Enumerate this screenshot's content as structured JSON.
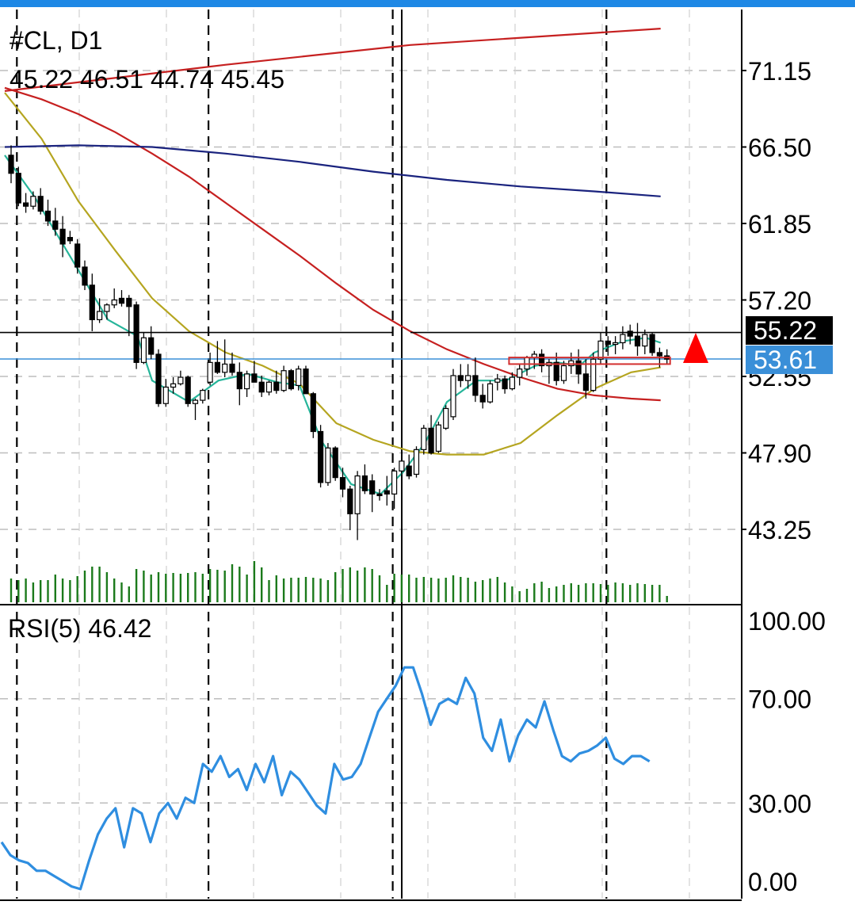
{
  "header": {
    "symbol_timeframe": "#CL, D1",
    "ohlc": "45.22 46.51 44.74 45.45"
  },
  "price_tags": {
    "last_price": "55.22",
    "blue_price": "53.61"
  },
  "rsi_header": "RSI(5) 46.42",
  "colors": {
    "bull_candle": "#ffffff",
    "bear_candle": "#000000",
    "volume": "#1b7a1b",
    "ma_teal": "#26b59a",
    "ma_olive": "#b5a520",
    "ma_red": "#c62020",
    "ma_navy": "#1a237e",
    "rsi_line": "#2f8ee0",
    "blue_price_line": "#3a8fd8",
    "signal_arrow": "#ff0000",
    "top_bar": "#1e88e5"
  },
  "icons": {
    "signal_arrow": "red-up-triangle-icon"
  },
  "chart_data": [
    {
      "type": "candlestick",
      "title": "#CL, D1",
      "y_axis_labels": [
        "71.15",
        "66.50",
        "61.85",
        "57.20",
        "52.55",
        "47.90",
        "43.25"
      ],
      "ylim": [
        40.8,
        73.5
      ],
      "horizontal_lines": [
        {
          "name": "last",
          "value": 55.22
        },
        {
          "name": "blue",
          "value": 53.61
        }
      ],
      "candles": [
        [
          66.0,
          66.6,
          64.3,
          64.9
        ],
        [
          64.9,
          65.3,
          62.9,
          63.1
        ],
        [
          63.1,
          63.7,
          62.5,
          62.9
        ],
        [
          62.9,
          63.8,
          62.7,
          63.5
        ],
        [
          63.5,
          64.0,
          62.4,
          62.6
        ],
        [
          62.6,
          63.3,
          61.7,
          62.0
        ],
        [
          62.0,
          62.8,
          61.1,
          61.5
        ],
        [
          61.5,
          62.3,
          59.8,
          60.6
        ],
        [
          61.0,
          61.4,
          60.6,
          60.8
        ],
        [
          60.6,
          60.9,
          58.8,
          59.2
        ],
        [
          59.2,
          59.6,
          57.8,
          58.1
        ],
        [
          58.1,
          58.8,
          55.3,
          56.0
        ],
        [
          56.0,
          57.3,
          55.8,
          56.5
        ],
        [
          56.5,
          57.0,
          56.0,
          56.9
        ],
        [
          56.9,
          57.9,
          56.7,
          57.2
        ],
        [
          57.3,
          57.8,
          56.8,
          57.0
        ],
        [
          57.3,
          57.5,
          55.0,
          56.8
        ],
        [
          56.9,
          57.1,
          53.0,
          53.4
        ],
        [
          53.4,
          55.2,
          53.3,
          54.9
        ],
        [
          54.9,
          55.6,
          53.6,
          53.9
        ],
        [
          53.9,
          54.2,
          50.7,
          50.9
        ],
        [
          50.9,
          52.4,
          50.7,
          51.9
        ],
        [
          51.9,
          52.5,
          51.5,
          52.1
        ],
        [
          52.1,
          52.9,
          52.0,
          52.5
        ],
        [
          52.5,
          52.6,
          50.7,
          50.9
        ],
        [
          50.9,
          51.2,
          49.9,
          51.1
        ],
        [
          51.1,
          51.8,
          50.9,
          51.7
        ],
        [
          52.2,
          54.0,
          52.0,
          53.4
        ],
        [
          53.4,
          54.7,
          52.7,
          52.8
        ],
        [
          52.8,
          54.8,
          52.5,
          53.3
        ],
        [
          53.3,
          54.0,
          52.6,
          52.8
        ],
        [
          52.8,
          53.4,
          50.8,
          51.8
        ],
        [
          51.8,
          52.9,
          51.3,
          52.7
        ],
        [
          52.7,
          53.5,
          52.5,
          52.2
        ],
        [
          52.2,
          52.6,
          51.3,
          51.6
        ],
        [
          51.6,
          52.3,
          51.4,
          52.2
        ],
        [
          52.2,
          52.9,
          51.5,
          51.7
        ],
        [
          51.7,
          53.2,
          51.6,
          52.9
        ],
        [
          52.9,
          53.0,
          51.7,
          51.8
        ],
        [
          52.0,
          53.2,
          51.7,
          53.0
        ],
        [
          53.0,
          53.2,
          51.5,
          51.5
        ],
        [
          51.5,
          51.6,
          48.8,
          49.2
        ],
        [
          49.2,
          49.6,
          45.8,
          46.1
        ],
        [
          46.1,
          48.5,
          45.9,
          48.2
        ],
        [
          48.2,
          48.3,
          46.2,
          46.4
        ],
        [
          46.4,
          47.0,
          45.2,
          45.7
        ],
        [
          45.7,
          45.9,
          43.2,
          44.2
        ],
        [
          44.2,
          46.8,
          42.6,
          46.5
        ],
        [
          46.5,
          47.2,
          45.4,
          45.6
        ],
        [
          46.2,
          46.6,
          44.3,
          45.4
        ],
        [
          45.4,
          45.7,
          45.0,
          45.3
        ],
        [
          45.6,
          46.5,
          44.7,
          45.4
        ],
        [
          45.4,
          47.0,
          44.5,
          46.8
        ],
        [
          46.8,
          48.0,
          46.2,
          47.4
        ],
        [
          47.1,
          47.8,
          46.3,
          46.5
        ],
        [
          46.6,
          48.3,
          46.4,
          48.1
        ],
        [
          48.1,
          49.6,
          47.8,
          49.4
        ],
        [
          49.4,
          50.2,
          47.8,
          47.9
        ],
        [
          48.0,
          49.8,
          47.9,
          49.6
        ],
        [
          49.4,
          50.8,
          49.3,
          50.6
        ],
        [
          50.1,
          53.0,
          49.9,
          52.6
        ],
        [
          52.6,
          53.3,
          51.9,
          52.3
        ],
        [
          52.3,
          53.3,
          51.8,
          52.6
        ],
        [
          52.6,
          53.7,
          51.0,
          51.4
        ],
        [
          51.4,
          52.1,
          50.6,
          51.0
        ],
        [
          51.0,
          52.3,
          50.9,
          52.1
        ],
        [
          52.2,
          52.7,
          51.7,
          52.4
        ],
        [
          52.4,
          52.6,
          51.5,
          51.8
        ],
        [
          51.8,
          52.8,
          51.7,
          52.5
        ],
        [
          52.5,
          53.3,
          52.0,
          53.0
        ],
        [
          53.0,
          53.8,
          52.6,
          53.7
        ],
        [
          53.7,
          54.1,
          53.0,
          53.9
        ],
        [
          53.9,
          54.2,
          52.8,
          53.2
        ],
        [
          53.2,
          53.6,
          52.1,
          53.4
        ],
        [
          53.4,
          54.0,
          52.0,
          52.3
        ],
        [
          52.3,
          53.5,
          52.1,
          53.2
        ],
        [
          53.2,
          54.0,
          52.7,
          53.5
        ],
        [
          53.5,
          54.2,
          52.1,
          52.7
        ],
        [
          52.7,
          53.6,
          51.2,
          51.7
        ],
        [
          51.7,
          54.0,
          51.6,
          53.6
        ],
        [
          53.6,
          55.2,
          53.3,
          54.7
        ],
        [
          54.7,
          55.0,
          53.8,
          54.5
        ],
        [
          54.5,
          55.0,
          53.9,
          54.6
        ],
        [
          54.6,
          55.6,
          54.2,
          55.1
        ],
        [
          55.3,
          55.7,
          54.5,
          55.0
        ],
        [
          55.0,
          55.8,
          53.8,
          54.4
        ],
        [
          54.4,
          55.4,
          53.9,
          55.1
        ],
        [
          55.1,
          55.2,
          53.8,
          54.0
        ],
        [
          54.0,
          54.3,
          53.1,
          53.8
        ],
        [
          53.8,
          54.2,
          53.3,
          53.6
        ]
      ],
      "volumes": [
        30,
        28,
        30,
        25,
        28,
        28,
        35,
        30,
        28,
        33,
        40,
        45,
        45,
        38,
        30,
        25,
        20,
        42,
        40,
        35,
        38,
        36,
        37,
        36,
        37,
        38,
        36,
        42,
        41,
        40,
        48,
        45,
        35,
        52,
        44,
        28,
        34,
        30,
        31,
        31,
        32,
        31,
        30,
        28,
        38,
        42,
        44,
        40,
        44,
        42,
        34,
        22,
        36,
        35,
        35,
        31,
        32,
        31,
        30,
        31,
        34,
        32,
        31,
        26,
        28,
        30,
        32,
        25,
        20,
        14,
        17,
        24,
        26,
        18,
        20,
        22,
        24,
        22,
        24,
        24,
        23,
        22,
        25,
        24,
        22,
        24,
        23,
        22,
        22,
        8
      ],
      "moving_averages": [
        {
          "color": "teal",
          "points": [
            [
              0,
              66.0
            ],
            [
              4,
              63.5
            ],
            [
              10,
              59.0
            ],
            [
              14,
              56.0
            ],
            [
              18,
              55.0
            ],
            [
              20,
              52.3
            ],
            [
              25,
              51.0
            ],
            [
              29,
              52.3
            ],
            [
              33,
              52.7
            ],
            [
              37,
              52.2
            ],
            [
              40,
              52.0
            ],
            [
              43,
              48.6
            ],
            [
              47,
              46.0
            ],
            [
              51,
              45.4
            ],
            [
              54,
              46.7
            ],
            [
              57,
              48.5
            ],
            [
              60,
              51.0
            ],
            [
              64,
              52.3
            ],
            [
              68,
              52.3
            ],
            [
              72,
              53.2
            ],
            [
              75,
              53.4
            ],
            [
              78,
              53.2
            ],
            [
              80,
              54.0
            ],
            [
              84,
              54.7
            ],
            [
              87,
              54.9
            ],
            [
              89,
              54.6
            ]
          ]
        },
        {
          "color": "olive",
          "points": [
            [
              0,
              69.8
            ],
            [
              5,
              67.0
            ],
            [
              10,
              63.2
            ],
            [
              15,
              60.2
            ],
            [
              20,
              57.3
            ],
            [
              25,
              55.3
            ],
            [
              30,
              54.0
            ],
            [
              35,
              53.2
            ],
            [
              40,
              52.1
            ],
            [
              45,
              49.7
            ],
            [
              50,
              48.7
            ],
            [
              55,
              48.0
            ],
            [
              60,
              47.8
            ],
            [
              65,
              47.8
            ],
            [
              70,
              48.5
            ],
            [
              75,
              50.2
            ],
            [
              80,
              51.8
            ],
            [
              85,
              52.8
            ],
            [
              89,
              53.1
            ]
          ]
        },
        {
          "color": "red",
          "points": [
            [
              0,
              70.1
            ],
            [
              5,
              69.4
            ],
            [
              10,
              68.5
            ],
            [
              15,
              67.4
            ],
            [
              20,
              66.1
            ],
            [
              25,
              64.7
            ],
            [
              30,
              63.1
            ],
            [
              35,
              61.5
            ],
            [
              40,
              59.9
            ],
            [
              45,
              58.2
            ],
            [
              50,
              56.6
            ],
            [
              55,
              55.3
            ],
            [
              60,
              54.2
            ],
            [
              65,
              53.3
            ],
            [
              70,
              52.5
            ],
            [
              75,
              51.8
            ],
            [
              80,
              51.4
            ],
            [
              85,
              51.2
            ],
            [
              89,
              51.1
            ]
          ]
        },
        {
          "color": "red",
          "points": [
            [
              0,
              69.9
            ],
            [
              30,
              71.5
            ],
            [
              55,
              72.7
            ],
            [
              89,
              73.7
            ]
          ]
        },
        {
          "color": "navy",
          "points": [
            [
              0,
              66.5
            ],
            [
              10,
              66.6
            ],
            [
              20,
              66.5
            ],
            [
              30,
              66.1
            ],
            [
              40,
              65.6
            ],
            [
              50,
              65.0
            ],
            [
              60,
              64.5
            ],
            [
              70,
              64.1
            ],
            [
              80,
              63.8
            ],
            [
              89,
              63.5
            ]
          ]
        }
      ],
      "signal_box": {
        "from": 68,
        "to": 89,
        "low": 53.3,
        "high": 53.7
      },
      "vertical_separators": [
        1,
        27,
        52,
        81
      ]
    },
    {
      "type": "line",
      "title": "RSI(5) 46.42",
      "y_axis_labels": [
        "100.00",
        "70.00",
        "30.00",
        "0.00"
      ],
      "ylim": [
        0,
        100
      ],
      "levels": [
        70,
        30
      ],
      "series": [
        {
          "values": [
            15,
            10,
            8,
            7,
            4,
            4,
            2,
            0,
            -2,
            -3,
            8,
            18,
            24,
            28,
            13,
            28,
            26,
            15,
            26,
            30,
            24,
            32,
            30,
            45,
            42,
            48,
            40,
            43,
            35,
            45,
            38,
            48,
            33,
            42,
            39,
            34,
            29,
            26,
            45,
            39,
            40,
            45,
            55,
            65,
            70,
            75,
            82,
            82,
            72,
            60,
            68,
            70,
            68,
            78,
            72,
            55,
            50,
            62,
            46,
            56,
            62,
            59,
            69,
            58,
            48,
            46,
            49,
            50,
            52,
            55,
            47,
            45,
            48,
            48,
            46
          ]
        }
      ]
    }
  ]
}
